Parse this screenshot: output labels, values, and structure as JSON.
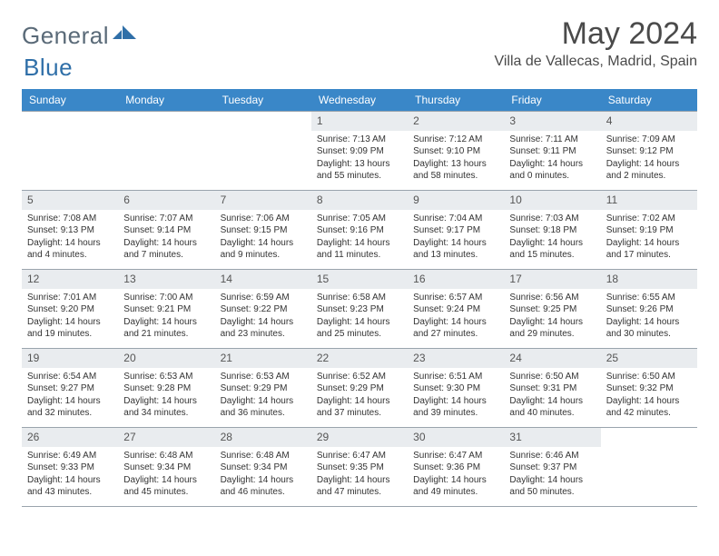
{
  "logo": {
    "text1": "General",
    "text2": "Blue"
  },
  "title": "May 2024",
  "location": "Villa de Vallecas, Madrid, Spain",
  "header_bg": "#3a87c8",
  "daynum_bg": "#e9ecef",
  "weekdays": [
    "Sunday",
    "Monday",
    "Tuesday",
    "Wednesday",
    "Thursday",
    "Friday",
    "Saturday"
  ],
  "weeks": [
    [
      null,
      null,
      null,
      {
        "n": "1",
        "sr": "7:13 AM",
        "ss": "9:09 PM",
        "dl1": "Daylight: 13 hours",
        "dl2": "and 55 minutes."
      },
      {
        "n": "2",
        "sr": "7:12 AM",
        "ss": "9:10 PM",
        "dl1": "Daylight: 13 hours",
        "dl2": "and 58 minutes."
      },
      {
        "n": "3",
        "sr": "7:11 AM",
        "ss": "9:11 PM",
        "dl1": "Daylight: 14 hours",
        "dl2": "and 0 minutes."
      },
      {
        "n": "4",
        "sr": "7:09 AM",
        "ss": "9:12 PM",
        "dl1": "Daylight: 14 hours",
        "dl2": "and 2 minutes."
      }
    ],
    [
      {
        "n": "5",
        "sr": "7:08 AM",
        "ss": "9:13 PM",
        "dl1": "Daylight: 14 hours",
        "dl2": "and 4 minutes."
      },
      {
        "n": "6",
        "sr": "7:07 AM",
        "ss": "9:14 PM",
        "dl1": "Daylight: 14 hours",
        "dl2": "and 7 minutes."
      },
      {
        "n": "7",
        "sr": "7:06 AM",
        "ss": "9:15 PM",
        "dl1": "Daylight: 14 hours",
        "dl2": "and 9 minutes."
      },
      {
        "n": "8",
        "sr": "7:05 AM",
        "ss": "9:16 PM",
        "dl1": "Daylight: 14 hours",
        "dl2": "and 11 minutes."
      },
      {
        "n": "9",
        "sr": "7:04 AM",
        "ss": "9:17 PM",
        "dl1": "Daylight: 14 hours",
        "dl2": "and 13 minutes."
      },
      {
        "n": "10",
        "sr": "7:03 AM",
        "ss": "9:18 PM",
        "dl1": "Daylight: 14 hours",
        "dl2": "and 15 minutes."
      },
      {
        "n": "11",
        "sr": "7:02 AM",
        "ss": "9:19 PM",
        "dl1": "Daylight: 14 hours",
        "dl2": "and 17 minutes."
      }
    ],
    [
      {
        "n": "12",
        "sr": "7:01 AM",
        "ss": "9:20 PM",
        "dl1": "Daylight: 14 hours",
        "dl2": "and 19 minutes."
      },
      {
        "n": "13",
        "sr": "7:00 AM",
        "ss": "9:21 PM",
        "dl1": "Daylight: 14 hours",
        "dl2": "and 21 minutes."
      },
      {
        "n": "14",
        "sr": "6:59 AM",
        "ss": "9:22 PM",
        "dl1": "Daylight: 14 hours",
        "dl2": "and 23 minutes."
      },
      {
        "n": "15",
        "sr": "6:58 AM",
        "ss": "9:23 PM",
        "dl1": "Daylight: 14 hours",
        "dl2": "and 25 minutes."
      },
      {
        "n": "16",
        "sr": "6:57 AM",
        "ss": "9:24 PM",
        "dl1": "Daylight: 14 hours",
        "dl2": "and 27 minutes."
      },
      {
        "n": "17",
        "sr": "6:56 AM",
        "ss": "9:25 PM",
        "dl1": "Daylight: 14 hours",
        "dl2": "and 29 minutes."
      },
      {
        "n": "18",
        "sr": "6:55 AM",
        "ss": "9:26 PM",
        "dl1": "Daylight: 14 hours",
        "dl2": "and 30 minutes."
      }
    ],
    [
      {
        "n": "19",
        "sr": "6:54 AM",
        "ss": "9:27 PM",
        "dl1": "Daylight: 14 hours",
        "dl2": "and 32 minutes."
      },
      {
        "n": "20",
        "sr": "6:53 AM",
        "ss": "9:28 PM",
        "dl1": "Daylight: 14 hours",
        "dl2": "and 34 minutes."
      },
      {
        "n": "21",
        "sr": "6:53 AM",
        "ss": "9:29 PM",
        "dl1": "Daylight: 14 hours",
        "dl2": "and 36 minutes."
      },
      {
        "n": "22",
        "sr": "6:52 AM",
        "ss": "9:29 PM",
        "dl1": "Daylight: 14 hours",
        "dl2": "and 37 minutes."
      },
      {
        "n": "23",
        "sr": "6:51 AM",
        "ss": "9:30 PM",
        "dl1": "Daylight: 14 hours",
        "dl2": "and 39 minutes."
      },
      {
        "n": "24",
        "sr": "6:50 AM",
        "ss": "9:31 PM",
        "dl1": "Daylight: 14 hours",
        "dl2": "and 40 minutes."
      },
      {
        "n": "25",
        "sr": "6:50 AM",
        "ss": "9:32 PM",
        "dl1": "Daylight: 14 hours",
        "dl2": "and 42 minutes."
      }
    ],
    [
      {
        "n": "26",
        "sr": "6:49 AM",
        "ss": "9:33 PM",
        "dl1": "Daylight: 14 hours",
        "dl2": "and 43 minutes."
      },
      {
        "n": "27",
        "sr": "6:48 AM",
        "ss": "9:34 PM",
        "dl1": "Daylight: 14 hours",
        "dl2": "and 45 minutes."
      },
      {
        "n": "28",
        "sr": "6:48 AM",
        "ss": "9:34 PM",
        "dl1": "Daylight: 14 hours",
        "dl2": "and 46 minutes."
      },
      {
        "n": "29",
        "sr": "6:47 AM",
        "ss": "9:35 PM",
        "dl1": "Daylight: 14 hours",
        "dl2": "and 47 minutes."
      },
      {
        "n": "30",
        "sr": "6:47 AM",
        "ss": "9:36 PM",
        "dl1": "Daylight: 14 hours",
        "dl2": "and 49 minutes."
      },
      {
        "n": "31",
        "sr": "6:46 AM",
        "ss": "9:37 PM",
        "dl1": "Daylight: 14 hours",
        "dl2": "and 50 minutes."
      },
      null
    ]
  ],
  "labels": {
    "sunrise": "Sunrise: ",
    "sunset": "Sunset: "
  }
}
